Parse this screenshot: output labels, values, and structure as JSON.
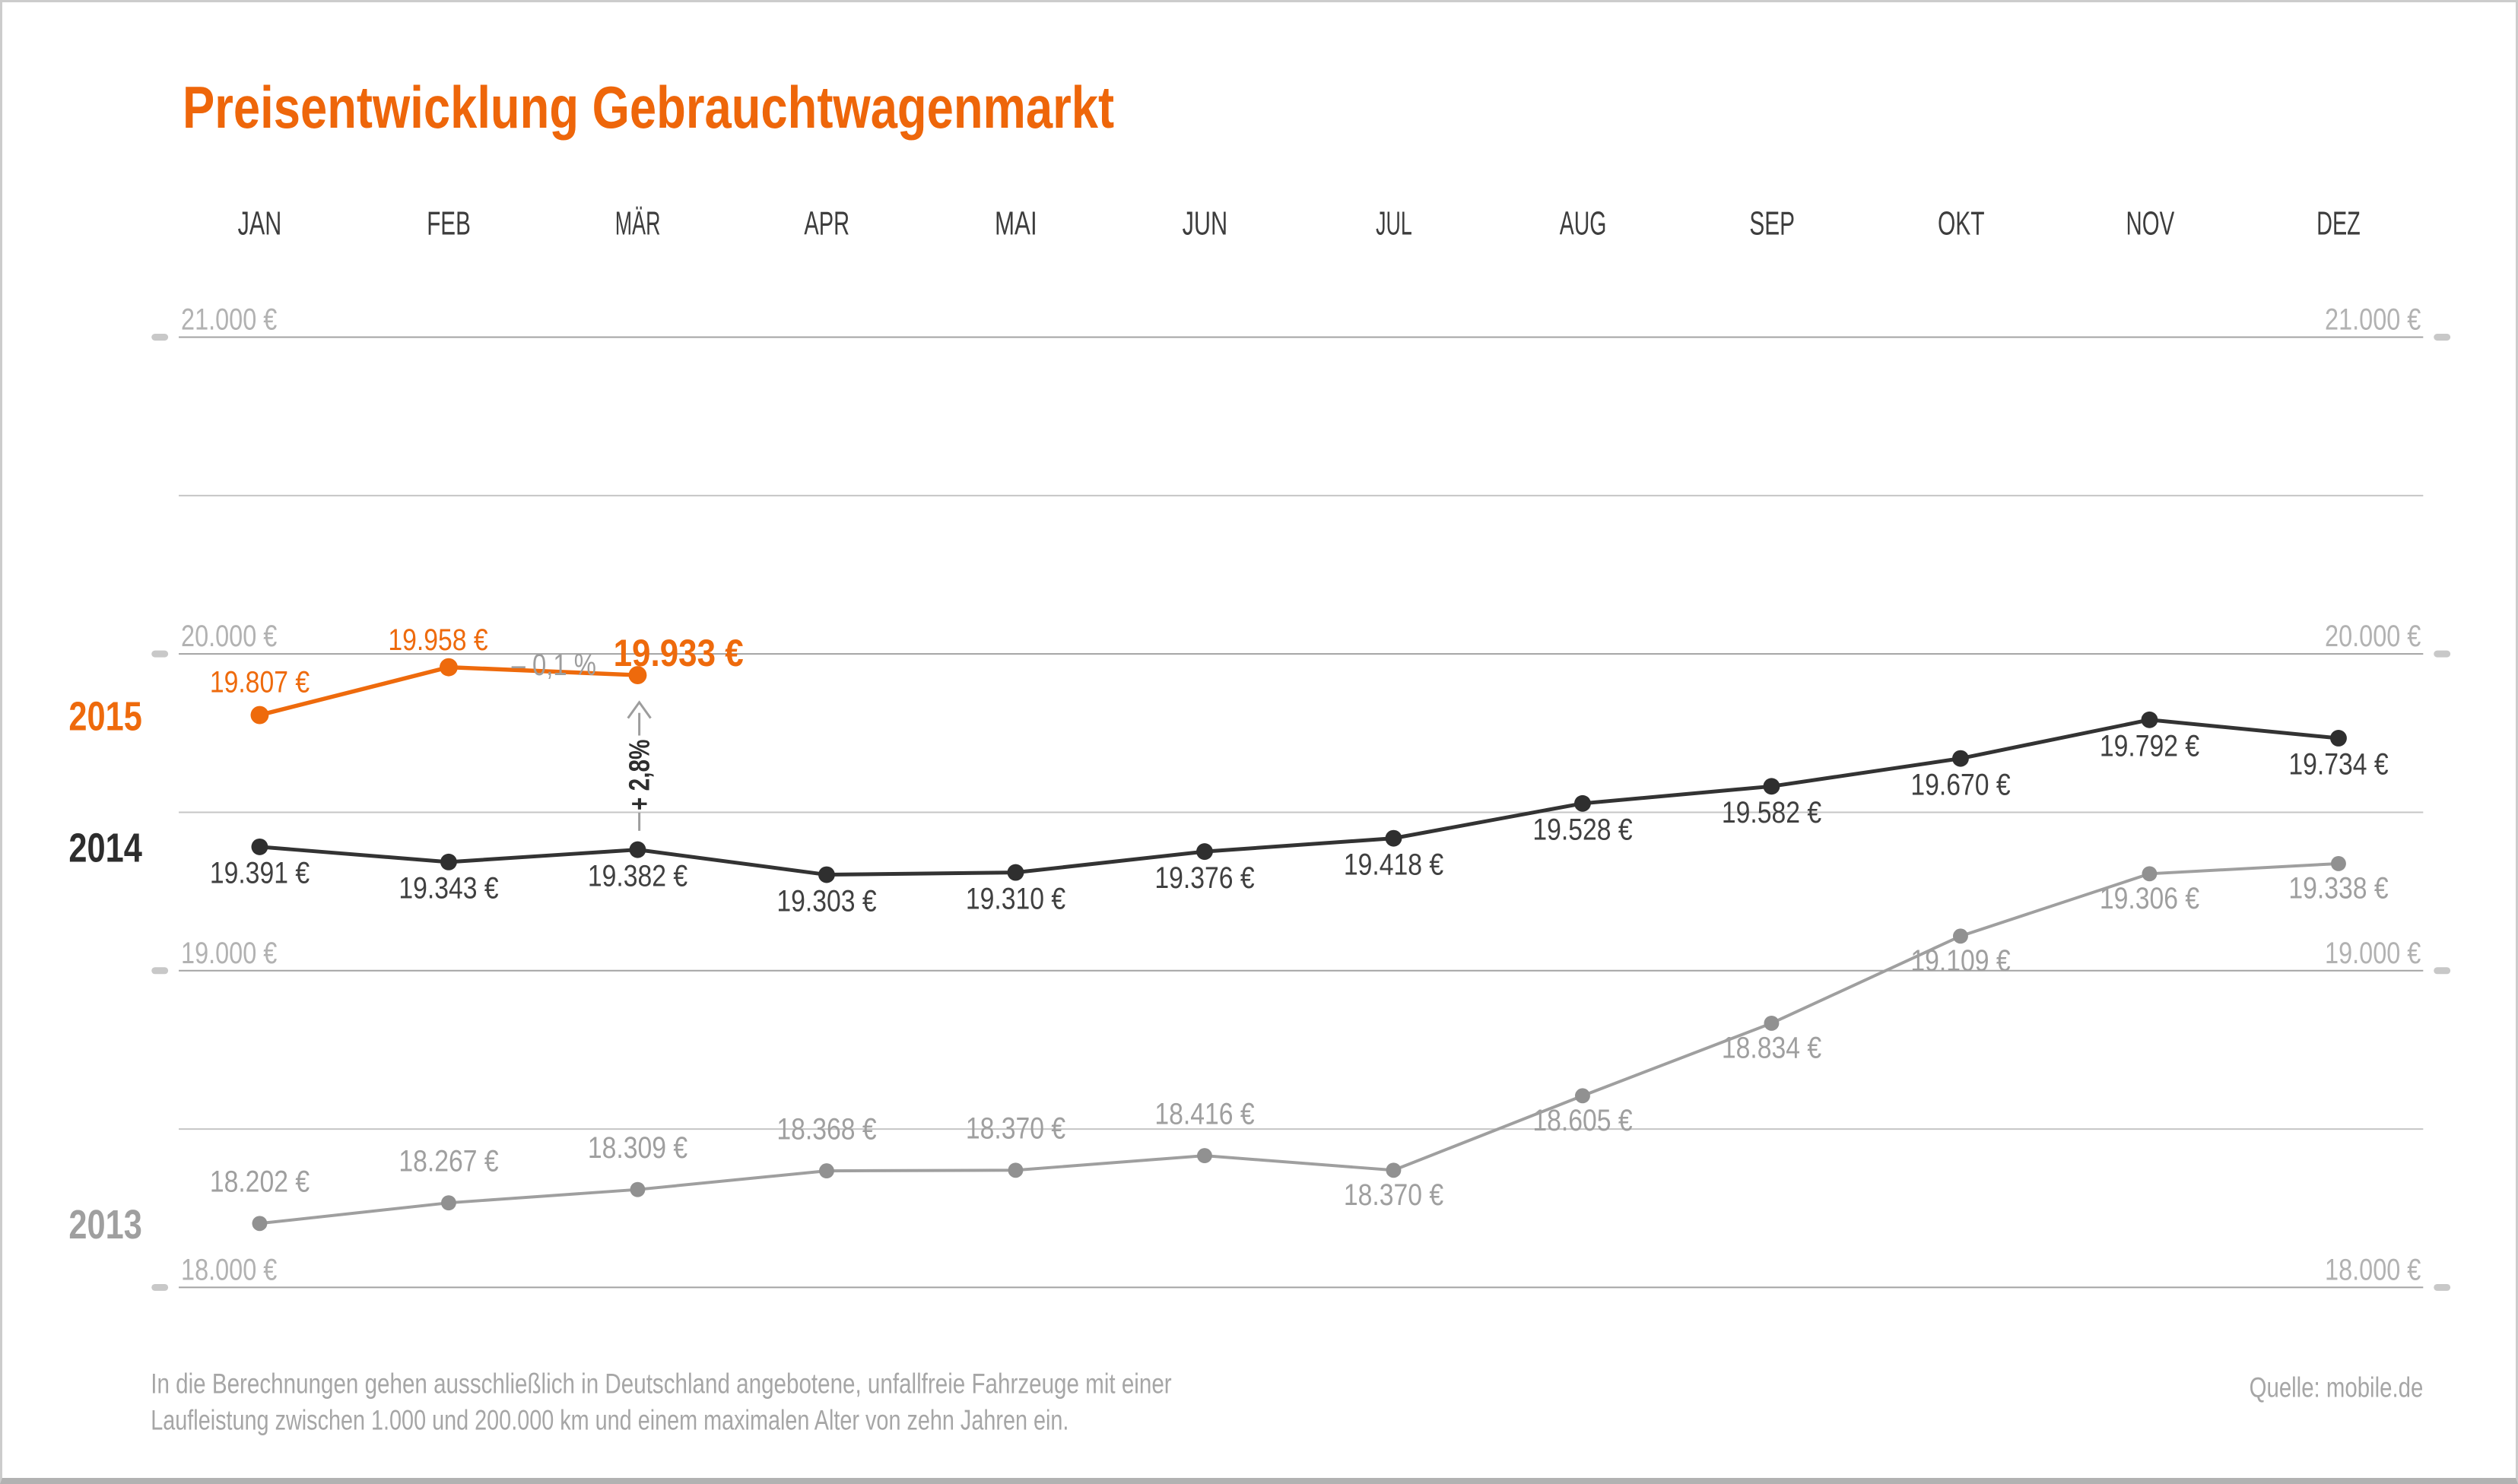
{
  "page": {
    "title": "Preisentwicklung Gebrauchtwagenmarkt",
    "footnote_line1": "In die Berechnungen gehen ausschließlich in Deutschland angebotene, unfallfreie Fahrzeuge mit einer",
    "footnote_line2": "Laufleistung zwischen 1.000 und 200.000 km und einem maximalen Alter von zehn Jahren ein.",
    "source": "Quelle: mobile.de"
  },
  "chart_data": {
    "type": "line",
    "title": "Preisentwicklung Gebrauchtwagenmarkt",
    "unit": "EUR",
    "categories": [
      "JAN",
      "FEB",
      "MÄR",
      "APR",
      "MAI",
      "JUN",
      "JUL",
      "AUG",
      "SEP",
      "OKT",
      "NOV",
      "DEZ"
    ],
    "ylim": [
      18000,
      21000
    ],
    "grid": "on",
    "y_major_gridlines": [
      21000,
      20000,
      19000,
      18000
    ],
    "y_minor_gridlines": [
      20500,
      19500,
      18500
    ],
    "y_axis_labels": [
      "21.000 €",
      "20.000 €",
      "19.000 €",
      "18.000 €"
    ],
    "y_axis_label_sides": "both",
    "legend_position": "left of each series start",
    "accent_color": "#ee6a0c",
    "series": [
      {
        "name": "2013",
        "color": "#9f9f9f",
        "dot_color": "#919191",
        "label_color": "#9f9f9f",
        "line_width": 4,
        "dot_radius": 10,
        "values": [
          18202,
          18267,
          18309,
          18368,
          18370,
          18416,
          18370,
          18605,
          18834,
          19109,
          19306,
          19338
        ],
        "labels": [
          "18.202 €",
          "18.267 €",
          "18.309 €",
          "18.368 €",
          "18.370 €",
          "18.416 €",
          "18.370 €",
          "18.605 €",
          "18.834 €",
          "19.109 €",
          "19.306 €",
          "19.338 €"
        ],
        "label_dx": [
          0,
          0,
          0,
          0,
          0,
          0,
          0,
          0,
          0,
          0,
          0,
          0
        ],
        "label_dy": [
          -42,
          -42,
          -42,
          -42,
          -42,
          -42,
          46,
          46,
          46,
          46,
          46,
          46
        ]
      },
      {
        "name": "2014",
        "color": "#333333",
        "dot_color": "#2f2f2f",
        "label_color": "#404040",
        "line_width": 5,
        "dot_radius": 11,
        "values": [
          19391,
          19343,
          19382,
          19303,
          19310,
          19376,
          19418,
          19528,
          19582,
          19670,
          19792,
          19734
        ],
        "labels": [
          "19.391 €",
          "19.343 €",
          "19.382 €",
          "19.303 €",
          "19.310 €",
          "19.376 €",
          "19.418 €",
          "19.528 €",
          "19.582 €",
          "19.670 €",
          "19.792 €",
          "19.734 €"
        ],
        "label_dx": [
          0,
          0,
          0,
          0,
          0,
          0,
          0,
          0,
          0,
          0,
          0,
          0
        ],
        "label_dy": [
          48,
          48,
          48,
          48,
          48,
          48,
          48,
          48,
          48,
          48,
          48,
          48
        ]
      },
      {
        "name": "2015",
        "color": "#ee6a0c",
        "dot_color": "#ee6a0c",
        "label_color": "#ee6a0c",
        "line_width": 5.5,
        "dot_radius": 12,
        "values": [
          19807,
          19958,
          19933
        ],
        "labels": [
          "19.807 €",
          "19.958 €",
          "19.933 €"
        ],
        "label_dx": [
          0,
          -14,
          54
        ],
        "label_dy": [
          -30,
          -23,
          -12
        ],
        "emphasis_index": 2
      }
    ],
    "annotations": [
      {
        "id": "month_over_month_change",
        "text": "– 0,1 %",
        "color": "#9d9d9d",
        "refers_to": "FEB→MÄR 2015"
      },
      {
        "id": "year_over_year_change",
        "text": "+ 2,8%",
        "color": "#2e2e2e",
        "refers_to": "MÄR 2014→MÄR 2015"
      }
    ]
  }
}
